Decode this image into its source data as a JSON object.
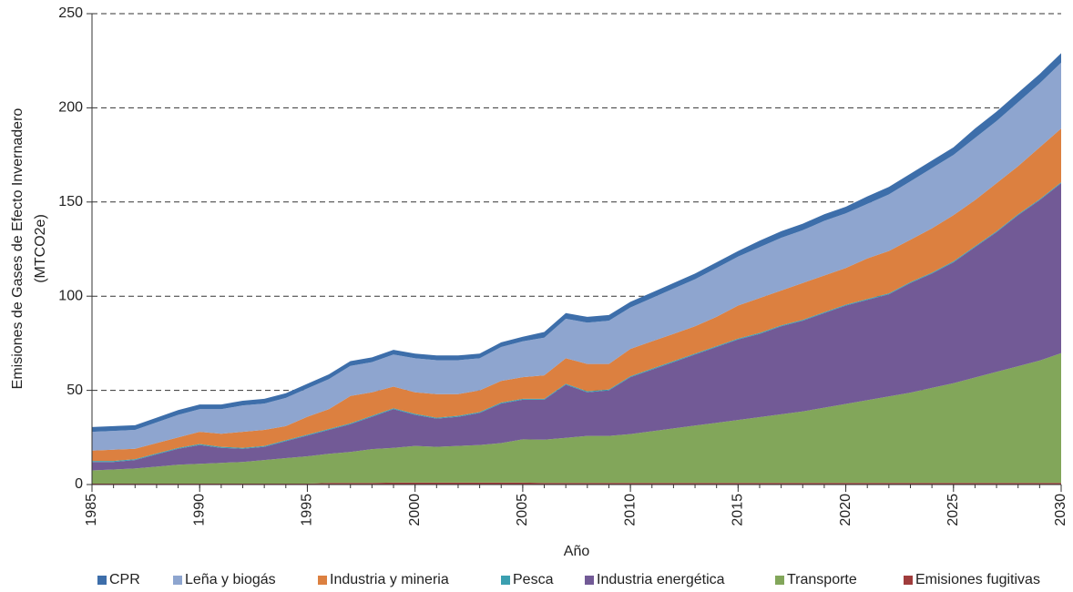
{
  "chart_data": {
    "type": "stacked_area",
    "xlabel": "Año",
    "ylabel": [
      "Emisiones de Gases de Efecto Invernadero",
      "(MTCO2e)"
    ],
    "x": [
      1985,
      1986,
      1987,
      1988,
      1989,
      1990,
      1991,
      1992,
      1993,
      1994,
      1995,
      1996,
      1997,
      1998,
      1999,
      2000,
      2001,
      2002,
      2003,
      2004,
      2005,
      2006,
      2007,
      2008,
      2009,
      2010,
      2011,
      2012,
      2013,
      2014,
      2015,
      2016,
      2017,
      2018,
      2019,
      2020,
      2021,
      2022,
      2023,
      2024,
      2025,
      2026,
      2027,
      2028,
      2029,
      2030
    ],
    "xlim": [
      1985,
      2030
    ],
    "xticks": [
      1985,
      1990,
      1995,
      2000,
      2005,
      2010,
      2015,
      2020,
      2025,
      2030
    ],
    "ylim": [
      0,
      250
    ],
    "yticks": [
      0,
      50,
      100,
      150,
      200,
      250
    ],
    "grid": true,
    "legend": "bottom",
    "series": [
      {
        "name": "CPR",
        "color": "#3d6eaa",
        "values": [
          2.5,
          2.5,
          2.5,
          2.5,
          2.5,
          2.5,
          2.5,
          2.5,
          2.5,
          2.5,
          2.5,
          2.5,
          2.5,
          2.5,
          2.5,
          2.5,
          2.5,
          2.5,
          2.5,
          2.5,
          2.5,
          3,
          3,
          3,
          3,
          3,
          3,
          3,
          3,
          3,
          3,
          3.5,
          3.5,
          3.5,
          3.5,
          3.5,
          4,
          4,
          4,
          4,
          4,
          5,
          5,
          5,
          5,
          5
        ]
      },
      {
        "name": "Leña y biogás",
        "color": "#8ea5cf",
        "values": [
          10,
          10,
          10,
          11,
          12,
          12,
          13,
          14,
          14,
          15,
          15,
          16,
          16,
          16,
          17,
          18,
          18,
          18,
          17,
          18,
          19,
          20,
          21,
          22,
          23,
          22,
          23,
          24,
          25,
          26,
          26,
          27,
          28,
          28,
          29,
          29,
          29,
          30,
          31,
          32,
          32,
          33,
          33,
          34,
          34,
          35
        ]
      },
      {
        "name": "Industria y mineria",
        "color": "#dc8040",
        "values": [
          5.5,
          6,
          5.5,
          5.5,
          5.5,
          6.5,
          7,
          8.5,
          8.5,
          7.5,
          9.5,
          10.5,
          14.5,
          12.5,
          11.5,
          11.5,
          12.5,
          11.5,
          11.5,
          11.5,
          11.5,
          12.5,
          13.5,
          14.5,
          13.5,
          14.5,
          14.5,
          14.5,
          14.5,
          15.5,
          17.5,
          18.5,
          18.5,
          19.5,
          19.5,
          19.5,
          21.5,
          22.5,
          22.5,
          23.5,
          24.5,
          24.5,
          25.5,
          25.5,
          27.5,
          28.5
        ]
      },
      {
        "name": "Pesca",
        "color": "#3b9fb0",
        "values": [
          0.5,
          0.5,
          0.5,
          0.5,
          0.5,
          0.5,
          0.5,
          0.5,
          0.5,
          0.5,
          0.5,
          0.5,
          0.5,
          0.5,
          0.5,
          0.5,
          0.5,
          0.5,
          0.5,
          0.5,
          0.5,
          0.5,
          0.5,
          0.5,
          0.5,
          0.5,
          0.5,
          0.5,
          0.5,
          0.5,
          0.5,
          0.5,
          0.5,
          0.5,
          0.5,
          0.5,
          0.5,
          0.5,
          0.5,
          0.5,
          0.5,
          0.5,
          0.5,
          0.5,
          0.5,
          0.5
        ]
      },
      {
        "name": "Industria energética",
        "color": "#725a96",
        "values": [
          4.5,
          4,
          4.5,
          6.5,
          8.5,
          10,
          8,
          7,
          7,
          9,
          11,
          12.7,
          14.7,
          17.2,
          20.5,
          16.5,
          15,
          15.5,
          17,
          21,
          21,
          21.2,
          28.2,
          23.2,
          24.2,
          30.2,
          32.7,
          35.2,
          37.7,
          40.2,
          42.7,
          44.2,
          46.7,
          48.2,
          50.2,
          52.2,
          53.2,
          54.2,
          58.2,
          60.7,
          64.2,
          69.2,
          74.2,
          80.2,
          85.2,
          90.2
        ]
      },
      {
        "name": "Transporte",
        "color": "#82a65a",
        "values": [
          7,
          7.5,
          8,
          9,
          10,
          10.5,
          11,
          11.5,
          12.5,
          13.5,
          14.5,
          15.5,
          16.5,
          18,
          18.5,
          19.5,
          19,
          19.5,
          20,
          21,
          23,
          23,
          24,
          25,
          25,
          26,
          27.5,
          29,
          30.5,
          32,
          33.5,
          35,
          36.5,
          38,
          40,
          42,
          44,
          46,
          48,
          50.5,
          53,
          56,
          59,
          62,
          65,
          69
        ]
      },
      {
        "name": "Emisiones fugitivas",
        "color": "#a03c3c",
        "values": [
          0.5,
          0.5,
          0.5,
          0.5,
          0.5,
          0.5,
          0.5,
          0.5,
          0.5,
          0.5,
          0.5,
          0.8,
          0.8,
          0.8,
          1,
          1,
          1,
          1,
          1,
          1,
          1,
          0.8,
          0.8,
          0.8,
          0.8,
          0.8,
          0.8,
          0.8,
          0.8,
          0.8,
          0.8,
          0.8,
          0.8,
          0.8,
          0.8,
          0.8,
          0.8,
          0.8,
          0.8,
          0.8,
          0.8,
          0.8,
          0.8,
          0.8,
          0.8,
          0.8
        ]
      }
    ]
  }
}
